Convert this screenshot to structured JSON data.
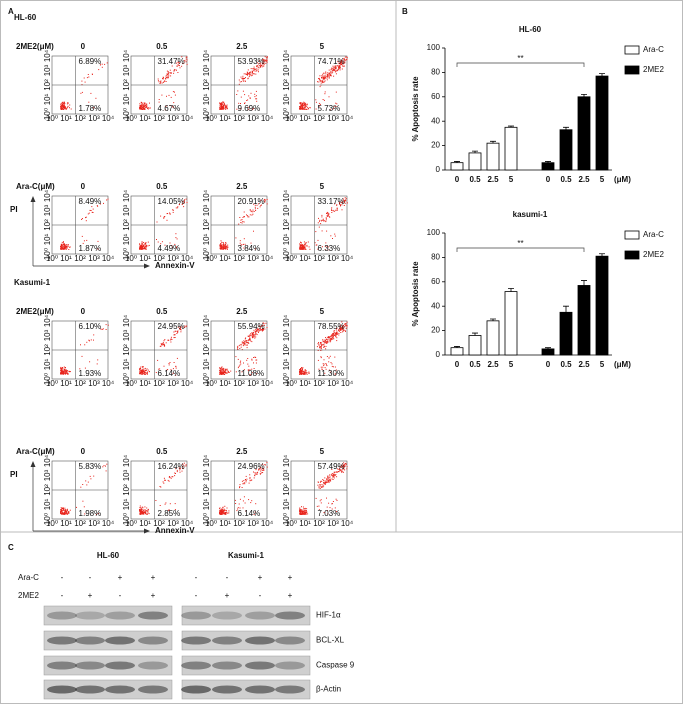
{
  "panel_a": {
    "label": "A",
    "y_label": "PI",
    "x_label": "Annexin-V",
    "axis_ticks": [
      "10⁰",
      "10¹",
      "10²",
      "10³",
      "10⁴"
    ],
    "sections": [
      {
        "title": "HL-60",
        "rows": [
          {
            "label": "2ME2(μM)",
            "plots": [
              {
                "conc": "0",
                "upper": "6.89%",
                "lower": "1.78%"
              },
              {
                "conc": "0.5",
                "upper": "31.47%",
                "lower": "4.67%"
              },
              {
                "conc": "2.5",
                "upper": "53.93%",
                "lower": "9.69%"
              },
              {
                "conc": "5",
                "upper": "74.71%",
                "lower": "5.73%"
              }
            ]
          },
          {
            "label": "Ara-C(μM)",
            "plots": [
              {
                "conc": "0",
                "upper": "8.49%",
                "lower": "1.87%"
              },
              {
                "conc": "0.5",
                "upper": "14.05%",
                "lower": "4.49%"
              },
              {
                "conc": "2.5",
                "upper": "20.91%",
                "lower": "3.84%"
              },
              {
                "conc": "5",
                "upper": "33.17%",
                "lower": "6.33%"
              }
            ]
          }
        ]
      },
      {
        "title": "Kasumi-1",
        "rows": [
          {
            "label": "2ME2(μM)",
            "plots": [
              {
                "conc": "0",
                "upper": "6.10%",
                "lower": "1.93%"
              },
              {
                "conc": "0.5",
                "upper": "24.95%",
                "lower": "6.14%"
              },
              {
                "conc": "2.5",
                "upper": "55.94%",
                "lower": "11.08%"
              },
              {
                "conc": "5",
                "upper": "78.55%",
                "lower": "11.30%"
              }
            ]
          },
          {
            "label": "Ara-C(μM)",
            "plots": [
              {
                "conc": "0",
                "upper": "5.83%",
                "lower": "1.98%"
              },
              {
                "conc": "0.5",
                "upper": "16.24%",
                "lower": "2.85%"
              },
              {
                "conc": "2.5",
                "upper": "24.96%",
                "lower": "6.14%"
              },
              {
                "conc": "5",
                "upper": "57.49%",
                "lower": "7.03%"
              }
            ]
          }
        ]
      }
    ]
  },
  "panel_b": {
    "label": "B"
  },
  "chart_data": [
    {
      "type": "bar",
      "title": "HL-60",
      "y_label": "% Apoptosis rate",
      "x_label": "(μM)",
      "annotation": "**",
      "categories": [
        "0",
        "0.5",
        "2.5",
        "5"
      ],
      "series": [
        {
          "name": "Ara-C",
          "color": "#ffffff",
          "values": [
            6,
            14,
            22,
            35
          ],
          "errors": [
            1,
            1.5,
            1.5,
            1
          ]
        },
        {
          "name": "2ME2",
          "color": "#000000",
          "values": [
            6,
            33,
            60,
            77
          ],
          "errors": [
            1,
            2,
            2,
            2
          ]
        }
      ],
      "ylim": [
        0,
        100
      ],
      "yticks": [
        0,
        20,
        40,
        60,
        80,
        100
      ]
    },
    {
      "type": "bar",
      "title": "kasumi-1",
      "y_label": "% Apoptosis rate",
      "x_label": "(μM)",
      "annotation": "**",
      "categories": [
        "0",
        "0.5",
        "2.5",
        "5"
      ],
      "series": [
        {
          "name": "Ara-C",
          "color": "#ffffff",
          "values": [
            6,
            16,
            28,
            52
          ],
          "errors": [
            1,
            2,
            1.5,
            2.5
          ]
        },
        {
          "name": "2ME2",
          "color": "#000000",
          "values": [
            5,
            35,
            57,
            81
          ],
          "errors": [
            1,
            5,
            4,
            2
          ]
        }
      ],
      "ylim": [
        0,
        100
      ],
      "yticks": [
        0,
        20,
        40,
        60,
        80,
        100
      ]
    }
  ],
  "panel_c": {
    "label": "C",
    "cell_lines": [
      "HL-60",
      "Kasumi-1"
    ],
    "treatments": [
      {
        "name": "Ara-C",
        "signs": [
          "-",
          "-",
          "+",
          "+"
        ]
      },
      {
        "name": "2ME2",
        "signs": [
          "-",
          "+",
          "-",
          "+"
        ]
      }
    ],
    "proteins": [
      "HIF-1α",
      "BCL-XL",
      "Caspase 9",
      "β-Actin"
    ]
  }
}
